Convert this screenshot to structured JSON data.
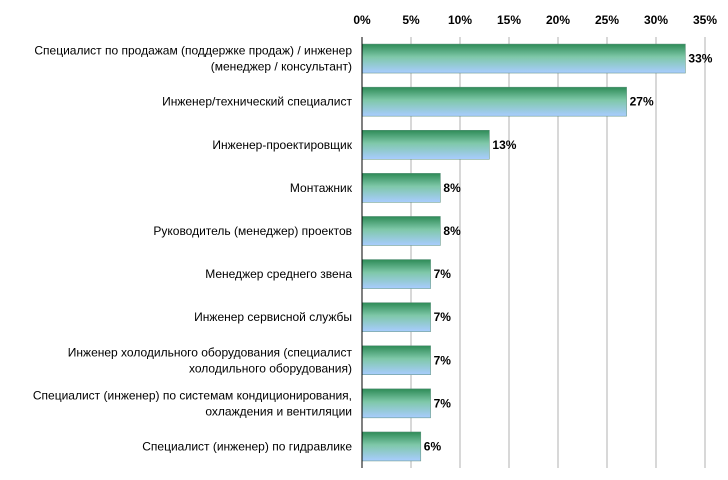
{
  "chart_data": {
    "type": "bar",
    "orientation": "horizontal",
    "categories": [
      [
        "Специалист по продажам (поддержке продаж) / инженер",
        "(менеджер / консультант)"
      ],
      [
        "Инженер/технический специалист"
      ],
      [
        "Инженер-проектировщик"
      ],
      [
        "Монтажник"
      ],
      [
        "Руководитель (менеджер) проектов"
      ],
      [
        "Менеджер среднего звена"
      ],
      [
        "Инженер сервисной службы"
      ],
      [
        "Инженер холодильного оборудования (специалист",
        "холодильного оборудования)"
      ],
      [
        "Специалист (инженер) по системам кондиционирования,",
        "охлаждения и вентиляции"
      ],
      [
        "Специалист (инженер) по гидравлике"
      ]
    ],
    "values": [
      33,
      27,
      13,
      8,
      8,
      7,
      7,
      7,
      7,
      6
    ],
    "data_labels": [
      "33%",
      "27%",
      "13%",
      "8%",
      "8%",
      "7%",
      "7%",
      "7%",
      "7%",
      "6%"
    ],
    "ticks": [
      "0%",
      "5%",
      "10%",
      "15%",
      "20%",
      "25%",
      "30%",
      "35%"
    ],
    "tick_values": [
      0,
      5,
      10,
      15,
      20,
      25,
      30,
      35
    ],
    "xlim": [
      0,
      35
    ],
    "axis_position": "top",
    "grid": true,
    "colors": {
      "bar_top": "#2e8b57",
      "bar_mid": "#7fc8a9",
      "bar_bottom": "#a9ccff",
      "grid": "#b0b0b0",
      "axis": "#000000"
    }
  }
}
